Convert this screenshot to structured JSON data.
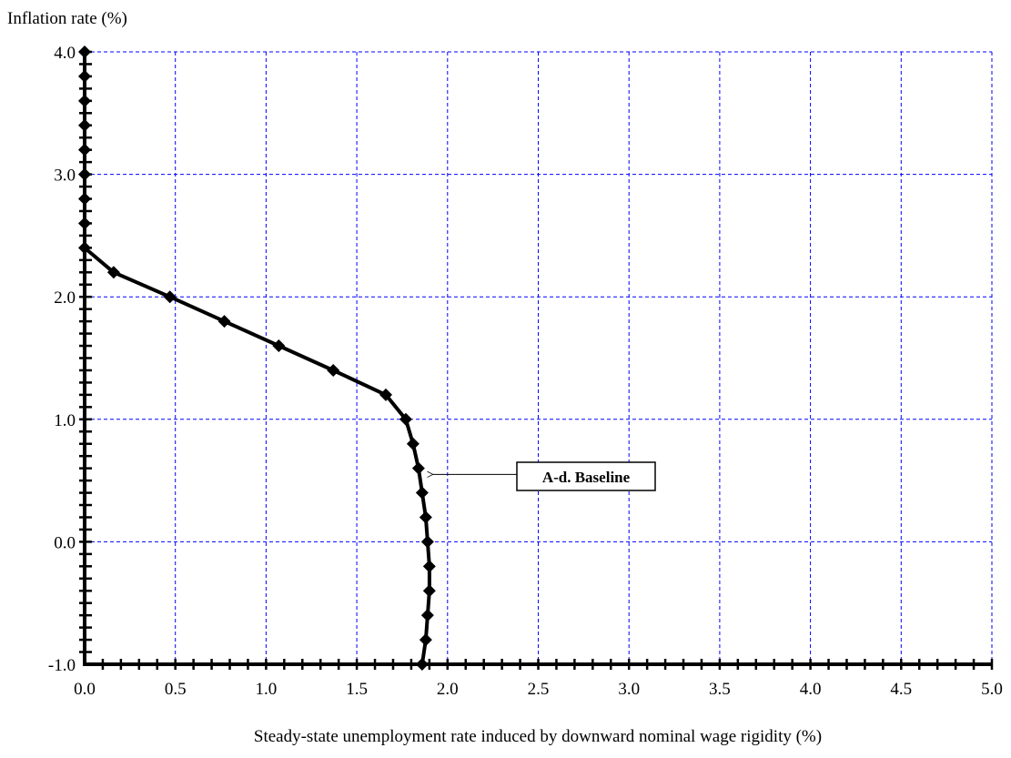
{
  "chart_data": {
    "type": "line",
    "ylabel": "Inflation rate (%)",
    "xlabel": "Steady-state unemployment rate induced by downward nominal wage rigidity (%)",
    "xlim": [
      0.0,
      5.0
    ],
    "ylim": [
      -1.0,
      4.0
    ],
    "x_ticks": [
      "0.0",
      "0.5",
      "1.0",
      "1.5",
      "2.0",
      "2.5",
      "3.0",
      "3.5",
      "4.0",
      "4.5",
      "5.0"
    ],
    "y_ticks": [
      "-1.0",
      "0.0",
      "1.0",
      "2.0",
      "3.0",
      "4.0"
    ],
    "grid": true,
    "series": [
      {
        "name": "A-d. Baseline",
        "color": "#000000",
        "marker": "diamond",
        "points": [
          {
            "x": 0.0,
            "y": 4.0
          },
          {
            "x": 0.0,
            "y": 3.8
          },
          {
            "x": 0.0,
            "y": 3.6
          },
          {
            "x": 0.0,
            "y": 3.4
          },
          {
            "x": 0.0,
            "y": 3.2
          },
          {
            "x": 0.0,
            "y": 3.0
          },
          {
            "x": 0.0,
            "y": 2.8
          },
          {
            "x": 0.0,
            "y": 2.6
          },
          {
            "x": 0.0,
            "y": 2.4
          },
          {
            "x": 0.16,
            "y": 2.2
          },
          {
            "x": 0.47,
            "y": 2.0
          },
          {
            "x": 0.77,
            "y": 1.8
          },
          {
            "x": 1.07,
            "y": 1.6
          },
          {
            "x": 1.37,
            "y": 1.4
          },
          {
            "x": 1.66,
            "y": 1.2
          },
          {
            "x": 1.77,
            "y": 1.0
          },
          {
            "x": 1.81,
            "y": 0.8
          },
          {
            "x": 1.84,
            "y": 0.6
          },
          {
            "x": 1.86,
            "y": 0.4
          },
          {
            "x": 1.88,
            "y": 0.2
          },
          {
            "x": 1.89,
            "y": 0.0
          },
          {
            "x": 1.9,
            "y": -0.2
          },
          {
            "x": 1.9,
            "y": -0.4
          },
          {
            "x": 1.89,
            "y": -0.6
          },
          {
            "x": 1.88,
            "y": -0.8
          },
          {
            "x": 1.86,
            "y": -1.0
          }
        ]
      }
    ],
    "annotations": [
      {
        "text": "A-d. Baseline",
        "points_to": {
          "x": 1.91,
          "y": 0.55
        },
        "boxed": true
      }
    ],
    "colors": {
      "grid": "#0000ff",
      "axis": "#000000",
      "series": "#000000"
    }
  }
}
